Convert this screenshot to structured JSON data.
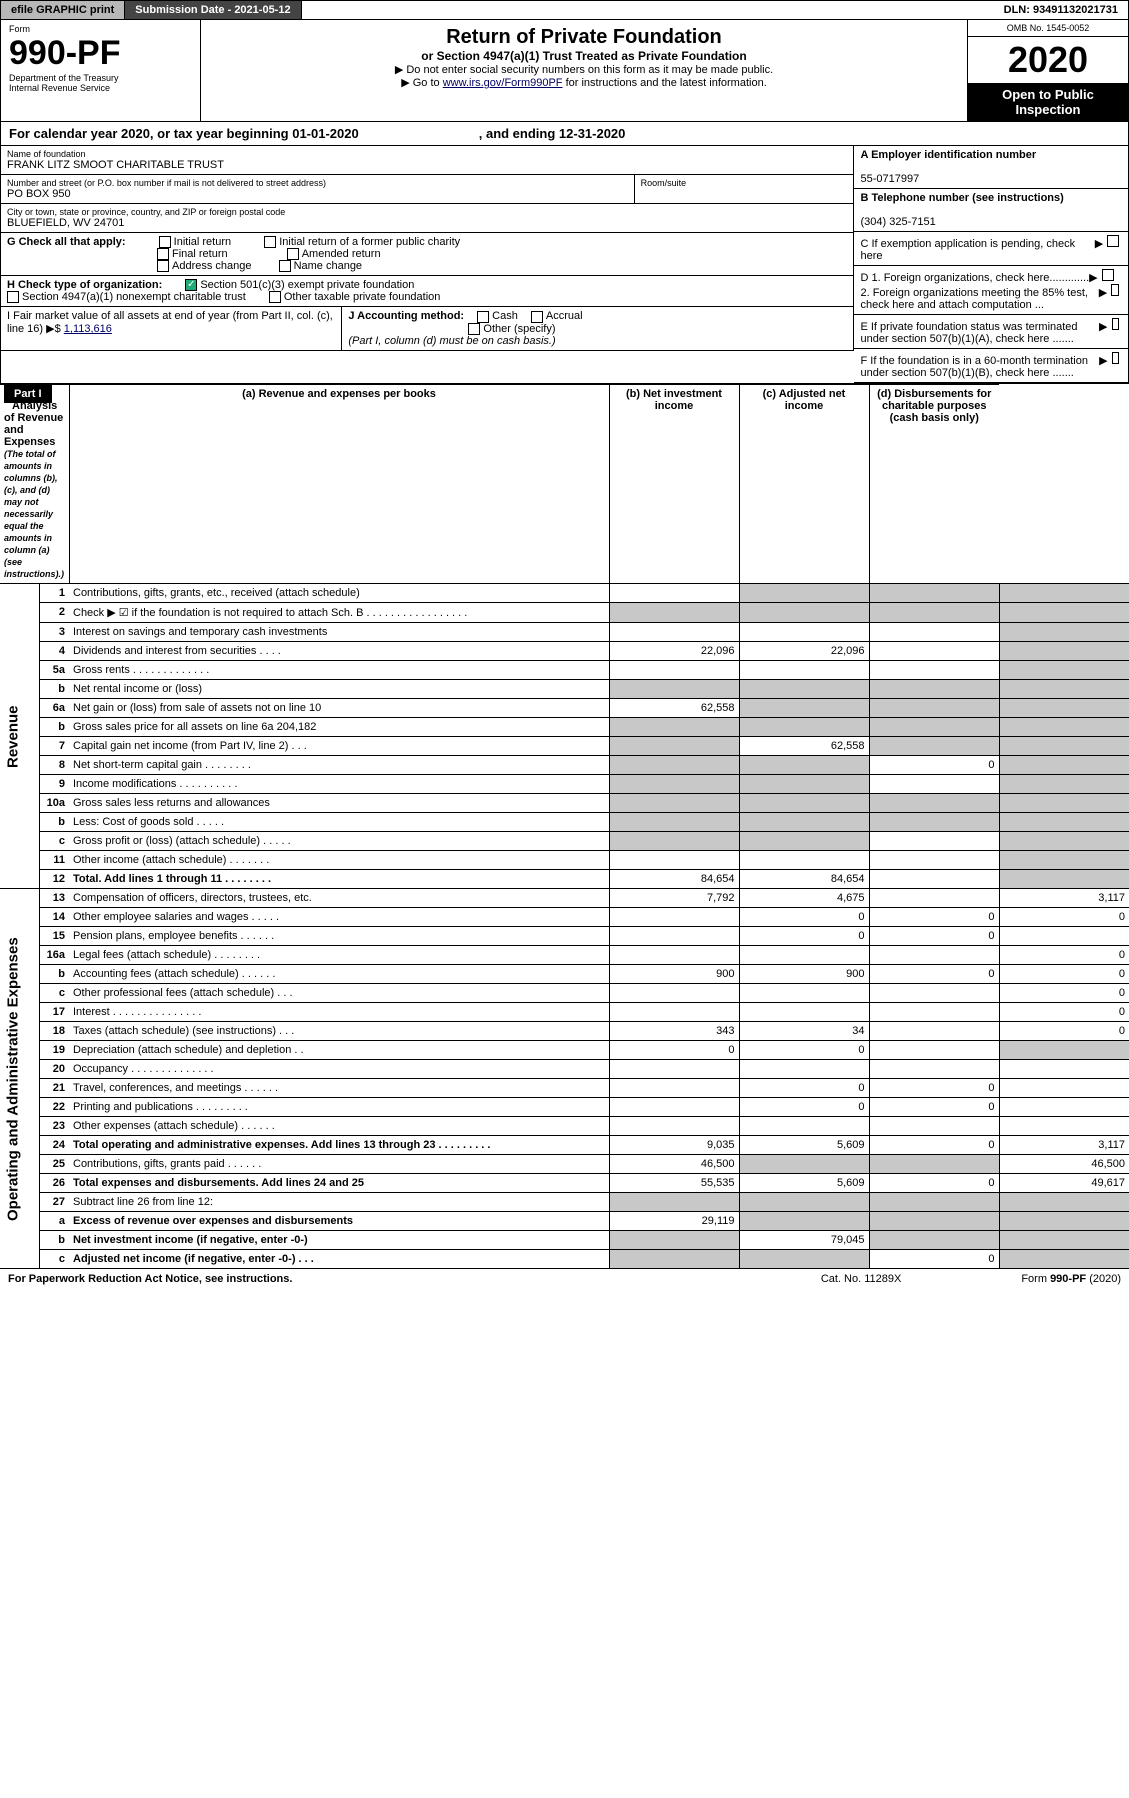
{
  "topbar": {
    "efile": "efile GRAPHIC print",
    "subdate_lbl": "Submission Date - 2021-05-12",
    "dln": "DLN: 93491132021731"
  },
  "head": {
    "form_lbl": "Form",
    "form_num": "990-PF",
    "dept": "Department of the Treasury",
    "irs": "Internal Revenue Service",
    "title": "Return of Private Foundation",
    "subtitle": "or Section 4947(a)(1) Trust Treated as Private Foundation",
    "bullet1": "▶ Do not enter social security numbers on this form as it may be made public.",
    "bullet2_pre": "▶ Go to ",
    "bullet2_link": "www.irs.gov/Form990PF",
    "bullet2_post": " for instructions and the latest information.",
    "omb": "OMB No. 1545-0052",
    "year": "2020",
    "open": "Open to Public Inspection"
  },
  "cal": {
    "text": "For calendar year 2020, or tax year beginning 01-01-2020",
    "end": ", and ending 12-31-2020"
  },
  "info": {
    "name_lbl": "Name of foundation",
    "name": "FRANK LITZ SMOOT CHARITABLE TRUST",
    "addr_lbl": "Number and street (or P.O. box number if mail is not delivered to street address)",
    "addr": "PO BOX 950",
    "room_lbl": "Room/suite",
    "city_lbl": "City or town, state or province, country, and ZIP or foreign postal code",
    "city": "BLUEFIELD, WV  24701",
    "A_lbl": "A Employer identification number",
    "A": "55-0717997",
    "B_lbl": "B Telephone number (see instructions)",
    "B": "(304) 325-7151",
    "C": "C If exemption application is pending, check here",
    "D1": "D 1. Foreign organizations, check here.............",
    "D2": "2. Foreign organizations meeting the 85% test, check here and attach computation ...",
    "E": "E  If private foundation status was terminated under section 507(b)(1)(A), check here .......",
    "F": "F  If the foundation is in a 60-month termination under section 507(b)(1)(B), check here .......",
    "G": "G Check all that apply:",
    "G_opts": [
      "Initial return",
      "Initial return of a former public charity",
      "Final return",
      "Amended return",
      "Address change",
      "Name change"
    ],
    "H": "H Check type of organization:",
    "H1": "Section 501(c)(3) exempt private foundation",
    "H2": "Section 4947(a)(1) nonexempt charitable trust",
    "H3": "Other taxable private foundation",
    "I": "I Fair market value of all assets at end of year (from Part II, col. (c), line 16)",
    "I_val": "1,113,616",
    "J": "J Accounting method:",
    "J1": "Cash",
    "J2": "Accrual",
    "J3": "Other (specify)",
    "J_note": "(Part I, column (d) must be on cash basis.)"
  },
  "part1": {
    "lbl": "Part I",
    "title": "Analysis of Revenue and Expenses",
    "title_note": "(The total of amounts in columns (b), (c), and (d) may not necessarily equal the amounts in column (a) (see instructions).)",
    "cols": {
      "a": "(a)  Revenue and expenses per books",
      "b": "(b)  Net investment income",
      "c": "(c)  Adjusted net income",
      "d": "(d)  Disbursements for charitable purposes (cash basis only)"
    }
  },
  "sides": {
    "rev": "Revenue",
    "ope": "Operating and Administrative Expenses"
  },
  "rows": [
    {
      "ln": "1",
      "d": "Contributions, gifts, grants, etc., received (attach schedule)",
      "a": "",
      "b": "g",
      "c": "g",
      "dd": "g"
    },
    {
      "ln": "2",
      "d": "Check ▶ ☑ if the foundation is not required to attach Sch. B . . . . . . . . . . . . . . . . .",
      "a": "g",
      "b": "g",
      "c": "g",
      "dd": "g"
    },
    {
      "ln": "3",
      "d": "Interest on savings and temporary cash investments",
      "a": "",
      "b": "",
      "c": "",
      "dd": "g"
    },
    {
      "ln": "4",
      "d": "Dividends and interest from securities . . . .",
      "a": "22,096",
      "b": "22,096",
      "c": "",
      "dd": "g"
    },
    {
      "ln": "5a",
      "d": "Gross rents . . . . . . . . . . . . .",
      "a": "",
      "b": "",
      "c": "",
      "dd": "g"
    },
    {
      "ln": "b",
      "d": "Net rental income or (loss)  ",
      "a": "g",
      "b": "g",
      "c": "g",
      "dd": "g"
    },
    {
      "ln": "6a",
      "d": "Net gain or (loss) from sale of assets not on line 10",
      "a": "62,558",
      "b": "g",
      "c": "g",
      "dd": "g"
    },
    {
      "ln": "b",
      "d": "Gross sales price for all assets on line 6a           204,182",
      "a": "g",
      "b": "g",
      "c": "g",
      "dd": "g"
    },
    {
      "ln": "7",
      "d": "Capital gain net income (from Part IV, line 2) . . .",
      "a": "g",
      "b": "62,558",
      "c": "g",
      "dd": "g"
    },
    {
      "ln": "8",
      "d": "Net short-term capital gain . . . . . . . .",
      "a": "g",
      "b": "g",
      "c": "0",
      "dd": "g"
    },
    {
      "ln": "9",
      "d": "Income modifications . . . . . . . . . .",
      "a": "g",
      "b": "g",
      "c": "",
      "dd": "g"
    },
    {
      "ln": "10a",
      "d": "Gross sales less returns and allowances",
      "a": "g",
      "b": "g",
      "c": "g",
      "dd": "g"
    },
    {
      "ln": "b",
      "d": "Less: Cost of goods sold . . . . .",
      "a": "g",
      "b": "g",
      "c": "g",
      "dd": "g"
    },
    {
      "ln": "c",
      "d": "Gross profit or (loss) (attach schedule) . . . . .",
      "a": "g",
      "b": "g",
      "c": "",
      "dd": "g"
    },
    {
      "ln": "11",
      "d": "Other income (attach schedule) . . . . . . .",
      "a": "",
      "b": "",
      "c": "",
      "dd": "g"
    },
    {
      "ln": "12",
      "d": "Total. Add lines 1 through 11 . . . . . . . .",
      "a": "84,654",
      "b": "84,654",
      "c": "",
      "dd": "g",
      "bold": true
    },
    {
      "ln": "13",
      "d": "Compensation of officers, directors, trustees, etc.",
      "a": "7,792",
      "b": "4,675",
      "c": "",
      "dd": "3,117"
    },
    {
      "ln": "14",
      "d": "Other employee salaries and wages . . . . .",
      "a": "",
      "b": "0",
      "c": "0",
      "dd": "0"
    },
    {
      "ln": "15",
      "d": "Pension plans, employee benefits . . . . . .",
      "a": "",
      "b": "0",
      "c": "0",
      "dd": ""
    },
    {
      "ln": "16a",
      "d": "Legal fees (attach schedule) . . . . . . . .",
      "a": "",
      "b": "",
      "c": "",
      "dd": "0"
    },
    {
      "ln": "b",
      "d": "Accounting fees (attach schedule) . . . . . .",
      "a": "900",
      "b": "900",
      "c": "0",
      "dd": "0"
    },
    {
      "ln": "c",
      "d": "Other professional fees (attach schedule) . . .",
      "a": "",
      "b": "",
      "c": "",
      "dd": "0"
    },
    {
      "ln": "17",
      "d": "Interest . . . . . . . . . . . . . . .",
      "a": "",
      "b": "",
      "c": "",
      "dd": "0"
    },
    {
      "ln": "18",
      "d": "Taxes (attach schedule) (see instructions) . . .",
      "a": "343",
      "b": "34",
      "c": "",
      "dd": "0"
    },
    {
      "ln": "19",
      "d": "Depreciation (attach schedule) and depletion . .",
      "a": "0",
      "b": "0",
      "c": "",
      "dd": "g"
    },
    {
      "ln": "20",
      "d": "Occupancy . . . . . . . . . . . . . .",
      "a": "",
      "b": "",
      "c": "",
      "dd": ""
    },
    {
      "ln": "21",
      "d": "Travel, conferences, and meetings . . . . . .",
      "a": "",
      "b": "0",
      "c": "0",
      "dd": ""
    },
    {
      "ln": "22",
      "d": "Printing and publications . . . . . . . . .",
      "a": "",
      "b": "0",
      "c": "0",
      "dd": ""
    },
    {
      "ln": "23",
      "d": "Other expenses (attach schedule) . . . . . .",
      "a": "",
      "b": "",
      "c": "",
      "dd": ""
    },
    {
      "ln": "24",
      "d": "Total operating and administrative expenses. Add lines 13 through 23 . . . . . . . . .",
      "a": "9,035",
      "b": "5,609",
      "c": "0",
      "dd": "3,117",
      "bold": true
    },
    {
      "ln": "25",
      "d": "Contributions, gifts, grants paid . . . . . .",
      "a": "46,500",
      "b": "g",
      "c": "g",
      "dd": "46,500"
    },
    {
      "ln": "26",
      "d": "Total expenses and disbursements. Add lines 24 and 25",
      "a": "55,535",
      "b": "5,609",
      "c": "0",
      "dd": "49,617",
      "bold": true
    },
    {
      "ln": "27",
      "d": "Subtract line 26 from line 12:",
      "a": "g",
      "b": "g",
      "c": "g",
      "dd": "g"
    },
    {
      "ln": "a",
      "d": "Excess of revenue over expenses and disbursements",
      "a": "29,119",
      "b": "g",
      "c": "g",
      "dd": "g",
      "bold": true
    },
    {
      "ln": "b",
      "d": "Net investment income (if negative, enter -0-)",
      "a": "g",
      "b": "79,045",
      "c": "g",
      "dd": "g",
      "bold": true
    },
    {
      "ln": "c",
      "d": "Adjusted net income (if negative, enter -0-) . . .",
      "a": "g",
      "b": "g",
      "c": "0",
      "dd": "g",
      "bold": true
    }
  ],
  "foot": {
    "l": "For Paperwork Reduction Act Notice, see instructions.",
    "m": "Cat. No. 11289X",
    "r": "Form 990-PF (2020)"
  }
}
